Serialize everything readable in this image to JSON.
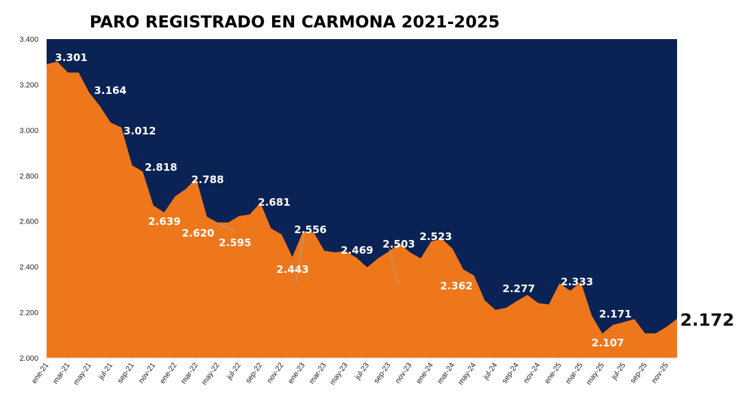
{
  "chart_data": {
    "type": "area",
    "title": "PARO REGISTRADO EN CARMONA 2021-2025",
    "xlabel": "",
    "ylabel": "",
    "ylim": [
      2000,
      3400
    ],
    "y_ticks": [
      "2.000",
      "2.200",
      "2.400",
      "2.600",
      "2.800",
      "3.000",
      "3.200",
      "3.400"
    ],
    "y_tick_values": [
      2000,
      2200,
      2400,
      2600,
      2800,
      3000,
      3200,
      3400
    ],
    "x_tick_labels": [
      "ene-21",
      "mar-21",
      "may-21",
      "jul-21",
      "sep-21",
      "nov-21",
      "ene-22",
      "mar-22",
      "may-22",
      "jul-22",
      "sep-22",
      "nov-22",
      "ene-23",
      "mar-23",
      "may-23",
      "jul-23",
      "sep-23",
      "nov-23",
      "ene-24",
      "mar-24",
      "may-24",
      "jul-24",
      "sep-24",
      "nov-24",
      "ene-25",
      "mar-25",
      "may-25",
      "jul-25",
      "sep-25",
      "nov-25"
    ],
    "months": [
      "ene-21",
      "feb-21",
      "mar-21",
      "abr-21",
      "may-21",
      "jun-21",
      "jul-21",
      "ago-21",
      "sep-21",
      "oct-21",
      "nov-21",
      "dic-21",
      "ene-22",
      "feb-22",
      "mar-22",
      "abr-22",
      "may-22",
      "jun-22",
      "jul-22",
      "ago-22",
      "sep-22",
      "oct-22",
      "nov-22",
      "dic-22",
      "ene-23",
      "feb-23",
      "mar-23",
      "abr-23",
      "may-23",
      "jun-23",
      "jul-23",
      "ago-23",
      "sep-23",
      "oct-23",
      "nov-23",
      "dic-23",
      "ene-24",
      "feb-24",
      "mar-24",
      "abr-24",
      "may-24",
      "jun-24",
      "jul-24",
      "ago-24",
      "sep-24",
      "oct-24",
      "nov-24",
      "dic-24",
      "ene-25",
      "feb-25",
      "mar-25",
      "abr-25",
      "may-25",
      "jun-25",
      "jul-25",
      "ago-25",
      "sep-25",
      "oct-25",
      "nov-25",
      "dic-25"
    ],
    "values": [
      3290,
      3301,
      3253,
      3253,
      3164,
      3105,
      3033,
      3012,
      2846,
      2818,
      2669,
      2639,
      2708,
      2741,
      2788,
      2620,
      2595,
      2595,
      2623,
      2630,
      2681,
      2569,
      2542,
      2443,
      2556,
      2551,
      2470,
      2464,
      2469,
      2440,
      2398,
      2437,
      2467,
      2503,
      2464,
      2437,
      2512,
      2523,
      2479,
      2389,
      2362,
      2253,
      2211,
      2220,
      2250,
      2277,
      2241,
      2235,
      2328,
      2295,
      2333,
      2187,
      2107,
      2145,
      2157,
      2171,
      2108,
      2108,
      2136,
      2172
    ],
    "data_labels": [
      {
        "index": 1,
        "text": "3.301"
      },
      {
        "index": 4,
        "text": "3.164"
      },
      {
        "index": 7,
        "text": "3.012"
      },
      {
        "index": 9,
        "text": "2.818"
      },
      {
        "index": 14,
        "text": "2.788"
      },
      {
        "index": 11,
        "text": "2.639"
      },
      {
        "index": 15,
        "text": "2.620"
      },
      {
        "index": 16,
        "text": "2.595"
      },
      {
        "index": 20,
        "text": "2.681"
      },
      {
        "index": 24,
        "text": "2.556"
      },
      {
        "index": 23,
        "text": "2.443"
      },
      {
        "index": 28,
        "text": "2.469"
      },
      {
        "index": 33,
        "text": "2.503"
      },
      {
        "index": 37,
        "text": "2.523"
      },
      {
        "index": 40,
        "text": "2.362"
      },
      {
        "index": 45,
        "text": "2.277"
      },
      {
        "index": 50,
        "text": "2.333"
      },
      {
        "index": 55,
        "text": "2.171"
      },
      {
        "index": 52,
        "text": "2.107"
      },
      {
        "index": 59,
        "text": "2.172"
      }
    ],
    "grid": false,
    "legend": "none",
    "colors": {
      "area": "#EE771C",
      "background_plot": "#0B2255"
    }
  }
}
